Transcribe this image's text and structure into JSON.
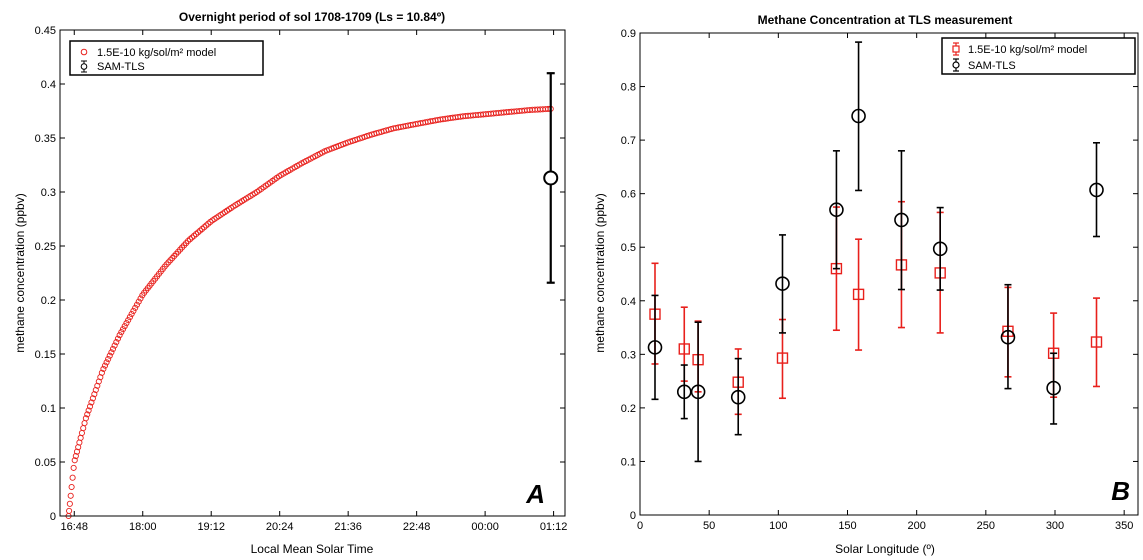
{
  "colors": {
    "model": "#e8201c",
    "tls": "#000000"
  },
  "chart_data": [
    {
      "type": "scatter",
      "title": "Overnight period of sol 1708-1709 (Ls = 10.84º)",
      "xlabel": "Local Mean Solar Time",
      "ylabel": "methane concentration (ppbv)",
      "xlim": [
        16.55,
        25.4
      ],
      "ylim": [
        0,
        0.45
      ],
      "xtick_values": [
        16.8,
        18.0,
        19.2,
        20.4,
        21.6,
        22.8,
        24.0,
        25.2
      ],
      "xtick_labels": [
        "16:48",
        "18:00",
        "19:12",
        "20:24",
        "21:36",
        "22:48",
        "00:00",
        "01:12"
      ],
      "ytick_labels": [
        "0",
        "0.05",
        "0.1",
        "0.15",
        "0.2",
        "0.25",
        "0.3",
        "0.35",
        "0.4",
        "0.45"
      ],
      "legend_position": "top-left",
      "panel_label": "A",
      "series": [
        {
          "name": "1.5E-10 kg/sol/m² model",
          "marker": "circle",
          "x_start": 16.7,
          "x_end": 25.15,
          "points_count": 230,
          "y_start": 0.0,
          "y_end": 0.377,
          "x": [
            16.7,
            16.8,
            17.0,
            17.3,
            17.6,
            18.0,
            18.4,
            18.8,
            19.2,
            19.6,
            20.0,
            20.4,
            20.8,
            21.2,
            21.6,
            22.0,
            22.4,
            22.8,
            23.2,
            23.6,
            24.0,
            24.4,
            24.8,
            25.15
          ],
          "y": [
            0.0,
            0.05,
            0.09,
            0.135,
            0.168,
            0.205,
            0.232,
            0.255,
            0.273,
            0.287,
            0.3,
            0.315,
            0.327,
            0.338,
            0.346,
            0.353,
            0.359,
            0.363,
            0.367,
            0.37,
            0.372,
            0.374,
            0.376,
            0.377
          ]
        },
        {
          "name": "SAM-TLS",
          "marker": "circle-errorbar",
          "x": [
            25.15
          ],
          "y": [
            0.313
          ],
          "err": [
            0.097
          ]
        }
      ]
    },
    {
      "type": "scatter",
      "title": "Methane Concentration at TLS measurement",
      "xlabel": "Solar Longitude (º)",
      "ylabel": "methane concentration (ppbv)",
      "xlim": [
        0,
        360
      ],
      "ylim": [
        0,
        0.9
      ],
      "xtick_values": [
        0,
        50,
        100,
        150,
        200,
        250,
        300,
        350
      ],
      "ytick_labels": [
        "0",
        "0.1",
        "0.2",
        "0.3",
        "0.4",
        "0.5",
        "0.6",
        "0.7",
        "0.8",
        "0.9"
      ],
      "legend_position": "top-right",
      "panel_label": "B",
      "series": [
        {
          "name": "1.5E-10 kg/sol/m² model",
          "marker": "square-errorbar",
          "x": [
            10.84,
            32,
            42,
            71,
            103,
            142,
            158,
            189,
            217,
            266,
            299,
            330
          ],
          "y": [
            0.375,
            0.31,
            0.29,
            0.248,
            0.293,
            0.46,
            0.412,
            0.467,
            0.452,
            0.343,
            0.302,
            0.323
          ],
          "lower": [
            0.282,
            0.25,
            0.23,
            0.188,
            0.218,
            0.345,
            0.308,
            0.35,
            0.34,
            0.258,
            0.22,
            0.24
          ],
          "upper": [
            0.47,
            0.388,
            0.362,
            0.31,
            0.365,
            0.575,
            0.515,
            0.585,
            0.565,
            0.425,
            0.377,
            0.405
          ]
        },
        {
          "name": "SAM-TLS",
          "marker": "circle-errorbar",
          "x": [
            10.84,
            32,
            42,
            71,
            103,
            142,
            158,
            189,
            217,
            266,
            299,
            330
          ],
          "y": [
            0.313,
            0.23,
            0.23,
            0.22,
            0.432,
            0.57,
            0.745,
            0.551,
            0.497,
            0.332,
            0.237,
            0.607
          ],
          "lower": [
            0.216,
            0.18,
            0.1,
            0.15,
            0.34,
            0.46,
            0.606,
            0.421,
            0.42,
            0.236,
            0.17,
            0.52
          ],
          "upper": [
            0.41,
            0.28,
            0.36,
            0.292,
            0.523,
            0.68,
            0.883,
            0.68,
            0.574,
            0.43,
            0.302,
            0.695
          ]
        }
      ]
    }
  ]
}
